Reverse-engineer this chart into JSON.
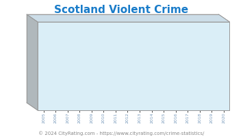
{
  "title": "Scotland Violent Crime",
  "title_color": "#1a7cc9",
  "title_fontsize": 11,
  "years": [
    2005,
    2006,
    2007,
    2008,
    2009,
    2010,
    2011,
    2012,
    2013,
    2014,
    2015,
    2016,
    2017,
    2018,
    2019,
    2020
  ],
  "values": [
    0.5,
    0.5,
    0.5,
    0.5,
    0.5,
    0.5,
    0.5,
    0.5,
    0.5,
    0.5,
    0.5,
    0.5,
    0.5,
    0.5,
    0.5,
    0.5
  ],
  "face_color": "#daeef7",
  "area_color": "#8db83a",
  "grid_color": "#c8dce8",
  "border_color": "#999999",
  "side_color": "#b0b8bc",
  "top_color": "#ccdde8",
  "footer_text": "© 2024 CityRating.com - https://www.cityrating.com/crime-statistics/",
  "footer_color": "#888888",
  "footer_fontsize": 5.0,
  "ylim": [
    0,
    10
  ],
  "tick_color": "#7799bb",
  "tick_fontsize": 4.5
}
